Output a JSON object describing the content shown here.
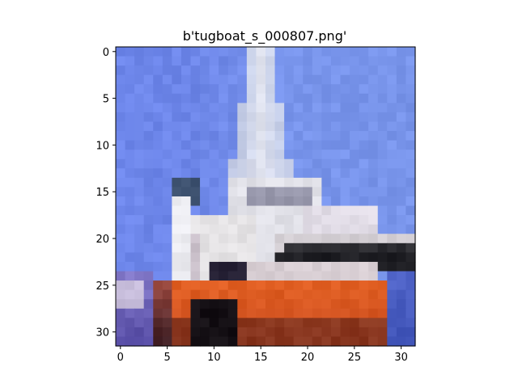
{
  "title": "b'tugboat_s_000807.png'",
  "image": {
    "description_free": true,
    "rows": 32,
    "cols": 32
  },
  "axes": {
    "x_ticks": [
      "0",
      "5",
      "10",
      "15",
      "20",
      "25",
      "30"
    ],
    "x_tick_values": [
      0,
      5,
      10,
      15,
      20,
      25,
      30
    ],
    "y_ticks": [
      "0",
      "5",
      "10",
      "15",
      "20",
      "25",
      "30"
    ],
    "y_tick_values": [
      0,
      5,
      10,
      15,
      20,
      25,
      30
    ],
    "xlim": [
      -0.5,
      31.5
    ],
    "ylim": [
      31.5,
      -0.5
    ]
  }
}
